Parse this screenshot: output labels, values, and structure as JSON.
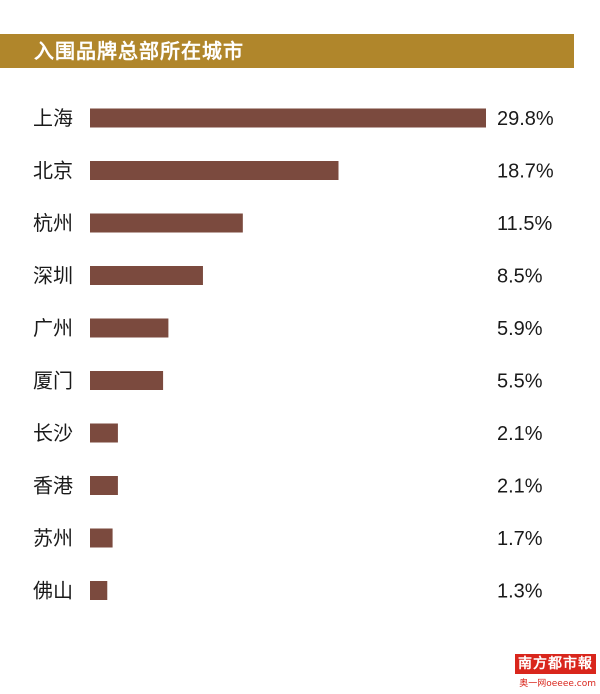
{
  "title": "入围品牌总部所在城市",
  "logo": {
    "badge_text": "南方都市報",
    "sub_text": "奥一网oeeee.com"
  },
  "colors": {
    "title_bar": "#b0862b",
    "bar": "#7b4a3e",
    "logo_red": "#d9261c"
  },
  "chart_data": {
    "type": "bar",
    "orientation": "horizontal",
    "categories": [
      "上海",
      "北京",
      "杭州",
      "深圳",
      "广州",
      "厦门",
      "长沙",
      "香港",
      "苏州",
      "佛山"
    ],
    "values": [
      29.8,
      18.7,
      11.5,
      8.5,
      5.9,
      5.5,
      2.1,
      2.1,
      1.7,
      1.3
    ],
    "value_labels": [
      "29.8%",
      "18.7%",
      "11.5%",
      "8.5%",
      "5.9%",
      "5.5%",
      "2.1%",
      "2.1%",
      "1.7%",
      "1.3%"
    ],
    "title": "入围品牌总部所在城市",
    "xlabel": "",
    "ylabel": "",
    "xlim": [
      0,
      29.8
    ],
    "grid": false,
    "legend": "none"
  }
}
